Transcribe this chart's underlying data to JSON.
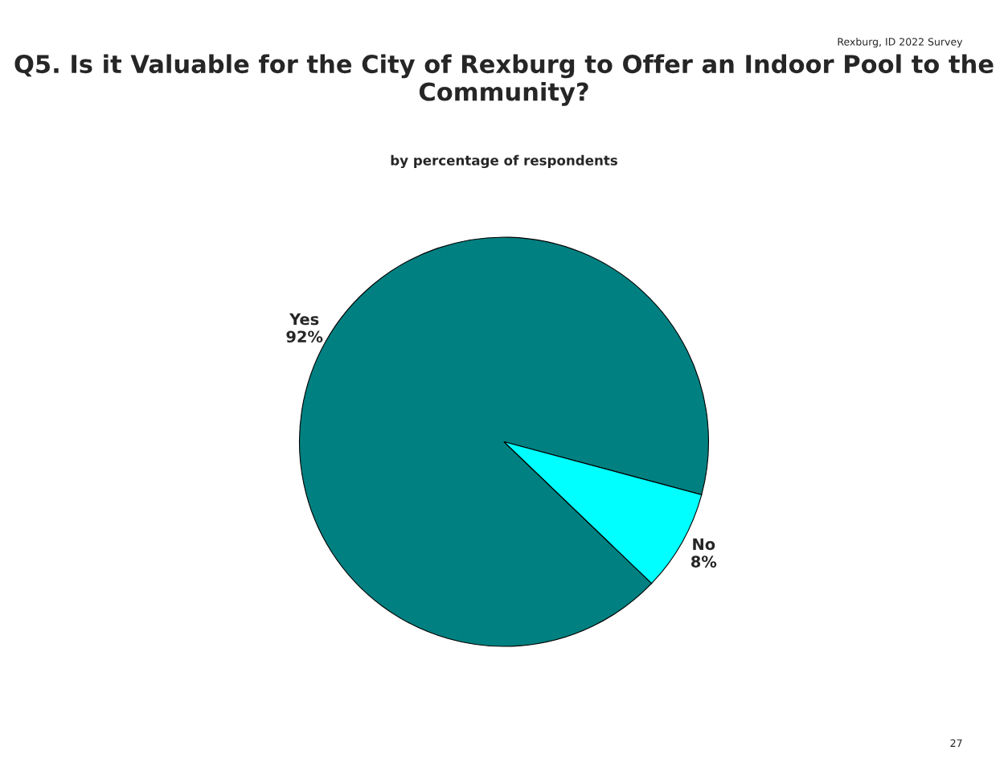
{
  "chart_data": {
    "type": "pie",
    "title": "Q5. Is it Valuable for the City of Rexburg to Offer an Indoor Pool to the Community?",
    "subtitle": "by percentage of respondents",
    "categories": [
      "Yes",
      "No"
    ],
    "values": [
      92,
      8
    ],
    "colors": [
      "#008080",
      "#00ffff"
    ],
    "value_labels": [
      "92%",
      "8%"
    ],
    "annotations": [
      "Rexburg, ID 2022 Survey",
      "27"
    ]
  }
}
